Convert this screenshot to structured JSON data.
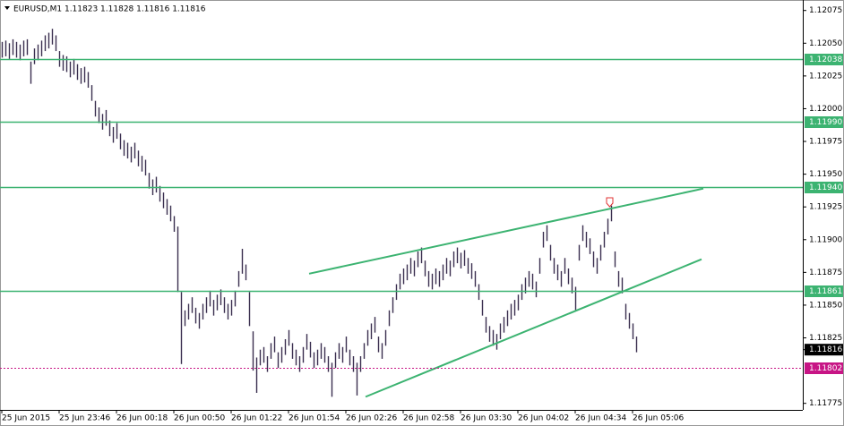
{
  "chart_data": {
    "type": "ohlc",
    "title": "EURUSD,M1  1.11823 1.11828 1.11816 1.11816",
    "color": "#3a2f4f",
    "high": [
      1.12051,
      1.12052,
      1.1205,
      1.12053,
      1.12051,
      1.12049,
      1.12052,
      1.12053,
      1.12036,
      1.12046,
      1.12049,
      1.12052,
      1.12056,
      1.12058,
      1.12061,
      1.12056,
      1.12044,
      1.12041,
      1.1204,
      1.12036,
      1.12038,
      1.12034,
      1.12031,
      1.12032,
      1.12028,
      1.12018,
      1.12006,
      1.12001,
      1.11996,
      1.11999,
      1.11991,
      1.11986,
      1.11989,
      1.11981,
      1.11976,
      1.11974,
      1.11971,
      1.11974,
      1.11968,
      1.11964,
      1.11961,
      1.11951,
      1.11946,
      1.11948,
      1.11941,
      1.11936,
      1.11931,
      1.11926,
      1.11918,
      1.1191,
      1.1186,
      1.11846,
      1.11851,
      1.11856,
      1.11848,
      1.11844,
      1.11851,
      1.11856,
      1.11861,
      1.11854,
      1.11858,
      1.11862,
      1.11856,
      1.11851,
      1.11854,
      1.11861,
      1.11876,
      1.11893,
      1.11881,
      1.1186,
      1.1183,
      1.1181,
      1.11816,
      1.11818,
      1.11811,
      1.11821,
      1.11826,
      1.11814,
      1.11818,
      1.11824,
      1.11831,
      1.11821,
      1.11816,
      1.11811,
      1.11818,
      1.11828,
      1.11822,
      1.11814,
      1.11816,
      1.11821,
      1.11818,
      1.11811,
      1.11806,
      1.11814,
      1.11821,
      1.11818,
      1.11826,
      1.11816,
      1.11811,
      1.11806,
      1.11811,
      1.11821,
      1.11831,
      1.11836,
      1.11841,
      1.11826,
      1.11821,
      1.11831,
      1.11846,
      1.11856,
      1.11866,
      1.11874,
      1.11878,
      1.11881,
      1.11886,
      1.11884,
      1.11891,
      1.11894,
      1.11884,
      1.11876,
      1.11874,
      1.11878,
      1.11876,
      1.11881,
      1.11886,
      1.11884,
      1.11891,
      1.11894,
      1.1189,
      1.11892,
      1.11886,
      1.11882,
      1.11876,
      1.11866,
      1.11854,
      1.11841,
      1.11834,
      1.11831,
      1.11828,
      1.11836,
      1.11841,
      1.11846,
      1.11851,
      1.11854,
      1.11858,
      1.11866,
      1.11871,
      1.11876,
      1.11874,
      1.11868,
      1.11886,
      1.11906,
      1.11911,
      1.11896,
      1.11886,
      1.11881,
      1.11876,
      1.11886,
      1.11878,
      1.11871,
      1.11864,
      1.11896,
      1.11911,
      1.11906,
      1.11901,
      1.11891,
      1.11886,
      1.11896,
      1.11906,
      1.11916,
      1.11926,
      1.11891,
      1.11876,
      1.11871,
      1.11851,
      1.11844,
      1.11836,
      1.11826
    ],
    "low": [
      1.12039,
      1.1204,
      1.12038,
      1.12041,
      1.12039,
      1.12037,
      1.1204,
      1.12041,
      1.12019,
      1.12034,
      1.12037,
      1.1204,
      1.12044,
      1.12046,
      1.12049,
      1.12044,
      1.12032,
      1.12029,
      1.12028,
      1.12024,
      1.12026,
      1.12022,
      1.12019,
      1.1202,
      1.12016,
      1.12006,
      1.11994,
      1.11989,
      1.11984,
      1.11987,
      1.11979,
      1.11974,
      1.11977,
      1.11969,
      1.11964,
      1.11962,
      1.11959,
      1.11962,
      1.11956,
      1.11952,
      1.11949,
      1.11939,
      1.11934,
      1.11936,
      1.11929,
      1.11924,
      1.11919,
      1.11914,
      1.11906,
      1.1186,
      1.11805,
      1.11834,
      1.11839,
      1.11844,
      1.11836,
      1.11832,
      1.11839,
      1.11844,
      1.11849,
      1.11842,
      1.11846,
      1.1185,
      1.11844,
      1.11839,
      1.11842,
      1.11849,
      1.11864,
      1.11874,
      1.11869,
      1.11834,
      1.118,
      1.11783,
      1.11804,
      1.11806,
      1.11799,
      1.11809,
      1.11814,
      1.11802,
      1.11806,
      1.11812,
      1.11819,
      1.11809,
      1.11804,
      1.11799,
      1.11806,
      1.11816,
      1.1181,
      1.11802,
      1.11804,
      1.11809,
      1.11806,
      1.11799,
      1.1178,
      1.11802,
      1.11809,
      1.11806,
      1.11814,
      1.11804,
      1.11799,
      1.11781,
      1.11799,
      1.11809,
      1.11819,
      1.11824,
      1.11829,
      1.11814,
      1.11809,
      1.11819,
      1.11834,
      1.11844,
      1.11854,
      1.11862,
      1.11866,
      1.11869,
      1.11874,
      1.11872,
      1.11879,
      1.11882,
      1.11872,
      1.11864,
      1.11862,
      1.11866,
      1.11864,
      1.11869,
      1.11874,
      1.11872,
      1.11879,
      1.11882,
      1.11878,
      1.1188,
      1.11874,
      1.1187,
      1.11864,
      1.11854,
      1.11842,
      1.11829,
      1.11822,
      1.11819,
      1.11816,
      1.11824,
      1.11829,
      1.11834,
      1.11839,
      1.11842,
      1.11846,
      1.11854,
      1.11859,
      1.11864,
      1.11862,
      1.11856,
      1.11874,
      1.11894,
      1.11899,
      1.11884,
      1.11874,
      1.11869,
      1.11864,
      1.11874,
      1.11866,
      1.11859,
      1.11846,
      1.11884,
      1.11899,
      1.11894,
      1.11889,
      1.11879,
      1.11874,
      1.11884,
      1.11894,
      1.11904,
      1.11914,
      1.11879,
      1.11864,
      1.11859,
      1.11839,
      1.11832,
      1.11824,
      1.11814
    ],
    "xlim": [
      -0.5,
      223.5
    ],
    "xticks": [
      {
        "value": 0,
        "label": "25 Jun 2015"
      },
      {
        "value": 16,
        "label": "25 Jun 23:46"
      },
      {
        "value": 32,
        "label": "26 Jun 00:18"
      },
      {
        "value": 48,
        "label": "26 Jun 00:50"
      },
      {
        "value": 64,
        "label": "26 Jun 01:22"
      },
      {
        "value": 80,
        "label": "26 Jun 01:54"
      },
      {
        "value": 96,
        "label": "26 Jun 02:26"
      },
      {
        "value": 112,
        "label": "26 Jun 02:58"
      },
      {
        "value": 128,
        "label": "26 Jun 03:30"
      },
      {
        "value": 144,
        "label": "26 Jun 04:02"
      },
      {
        "value": 160,
        "label": "26 Jun 04:34"
      },
      {
        "value": 176,
        "label": "26 Jun 05:06"
      }
    ],
    "ylim": [
      1.1177,
      1.12083
    ],
    "yticks": [
      1.12075,
      {
        "value": 1.1205,
        "label": "1.12050"
      },
      1.12025,
      {
        "value": 1.12,
        "label": "1.12000"
      },
      1.11975,
      {
        "value": 1.1195,
        "label": "1.11950"
      },
      1.11925,
      {
        "value": 1.119,
        "label": "1.11900"
      },
      1.11875,
      {
        "value": 1.1185,
        "label": "1.11850"
      },
      1.11825,
      1.11775
    ],
    "levels": [
      {
        "price": 1.12038,
        "color": "#3cb371",
        "style": "solid"
      },
      {
        "price": {
          "value": 1.1199,
          "label": "1.11990"
        },
        "color": "#3cb371",
        "style": "solid"
      },
      {
        "price": {
          "value": 1.1194,
          "label": "1.11940"
        },
        "color": "#3cb371",
        "style": "solid"
      },
      {
        "price": 1.11861,
        "color": "#3cb371",
        "style": "solid"
      },
      {
        "price": 1.11802,
        "color": "#c71585",
        "style": "dashed"
      }
    ],
    "current_price": 1.11816,
    "trendlines": [
      {
        "x": [
          85.75,
          195.75
        ],
        "y": [
          1.11874,
          1.11939
        ],
        "color": "#3cb371"
      },
      {
        "x": [
          101.5,
          195.25
        ],
        "y": [
          1.1178,
          1.11885
        ],
        "color": "#3cb371"
      }
    ]
  }
}
